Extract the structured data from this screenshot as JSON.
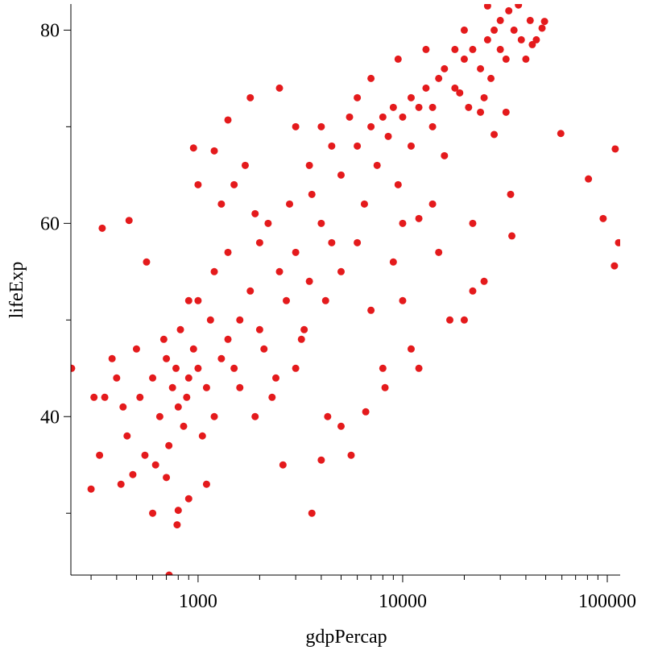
{
  "chart_data": {
    "type": "scatter",
    "x_label": "gdpPercap",
    "y_label": "lifeExp",
    "color": "#e41a1c",
    "xscale": "log",
    "xlim": [
      239,
      115600
    ],
    "ylim": [
      23.6,
      82.7
    ],
    "xticks": [
      1000,
      10000,
      100000
    ],
    "xminor_ticks": [
      300,
      400,
      500,
      600,
      700,
      800,
      900,
      2000,
      3000,
      4000,
      5000,
      6000,
      7000,
      8000,
      9000,
      20000,
      30000,
      40000,
      50000,
      60000,
      70000,
      80000,
      90000
    ],
    "yticks": [
      40,
      60,
      80
    ],
    "yminor_ticks": [
      30,
      50,
      70
    ],
    "x": [
      450,
      520,
      600,
      650,
      700,
      750,
      800,
      850,
      900,
      950,
      500,
      550,
      620,
      680,
      720,
      780,
      820,
      880,
      1000,
      1100,
      1200,
      1300,
      1400,
      1050,
      1150,
      400,
      430,
      480,
      350,
      330,
      380,
      420,
      300,
      310,
      340,
      460,
      560,
      600,
      800,
      790,
      900,
      700,
      1100,
      1000,
      1200,
      1400,
      1600,
      1800,
      2000,
      2200,
      2500,
      2800,
      3000,
      3300,
      3600,
      4000,
      4500,
      1300,
      1500,
      1700,
      1900,
      2100,
      2400,
      2700,
      3200,
      3500,
      4200,
      1600,
      1900,
      2300,
      900,
      1000,
      1200,
      950,
      2500,
      1800,
      1400,
      2600,
      3600,
      4000,
      4300,
      5000,
      5600,
      6600,
      3000,
      2000,
      1500,
      5000,
      6000,
      7000,
      8000,
      9000,
      10000,
      11000,
      12000,
      13000,
      14000,
      15000,
      6500,
      7500,
      8500,
      9500,
      5500,
      6000,
      7000,
      4500,
      4000,
      3500,
      3000,
      5000,
      6000,
      7000,
      8000,
      8200,
      9000,
      10000,
      11000,
      12000,
      12000,
      15000,
      17000,
      20000,
      22000,
      25000,
      22000,
      14000,
      16000,
      10000,
      9500,
      16000,
      18000,
      20000,
      22000,
      24000,
      26000,
      28000,
      30000,
      32000,
      35000,
      38000,
      42000,
      45000,
      18000,
      21000,
      25000,
      27000,
      30000,
      33000,
      19000,
      24000,
      28000,
      32000,
      40000,
      43000,
      48000,
      13000,
      14000,
      11000,
      20000,
      26000,
      722,
      241,
      113523,
      108382,
      109348,
      95458,
      80895,
      59265,
      34168,
      33693,
      36797,
      49357
    ],
    "values": [
      38,
      42,
      44,
      40,
      46,
      43,
      41,
      39,
      44,
      47,
      47,
      36,
      35,
      48,
      37,
      45,
      49,
      42,
      45,
      43,
      40,
      46,
      48,
      38,
      50,
      44,
      41,
      34,
      42,
      36,
      46,
      33,
      32.5,
      42,
      59.5,
      60.3,
      56,
      30,
      30.3,
      28.8,
      31.5,
      33.7,
      33,
      52,
      55,
      57,
      50,
      53,
      58,
      60,
      55,
      62,
      57,
      49,
      63,
      60,
      58,
      62,
      64,
      66,
      61,
      47,
      44,
      52,
      48,
      54,
      52,
      43,
      40,
      42,
      52,
      64,
      67.5,
      67.8,
      74,
      73,
      70.7,
      35,
      30,
      35.5,
      40,
      39,
      36,
      40.5,
      45,
      49,
      45,
      65,
      68,
      70,
      71,
      72,
      71,
      73,
      72,
      74,
      72,
      75,
      62,
      66,
      69,
      64,
      71,
      73,
      75,
      68,
      70,
      66,
      70,
      55,
      58,
      51,
      45,
      43,
      56,
      52,
      47,
      45,
      60.5,
      57,
      50,
      50,
      53,
      54,
      60,
      62,
      67,
      60,
      77,
      76,
      74,
      77,
      78,
      76,
      79,
      80,
      78,
      77,
      80,
      79,
      81,
      79,
      78,
      72,
      73,
      75,
      81,
      82,
      73.5,
      71.5,
      69.2,
      71.5,
      77,
      78.5,
      80.2,
      78,
      70,
      68,
      80,
      82.5,
      23.6,
      45,
      58,
      55.6,
      67.7,
      60.5,
      64.6,
      69.3,
      58.7,
      63,
      82.6,
      80.9
    ]
  }
}
